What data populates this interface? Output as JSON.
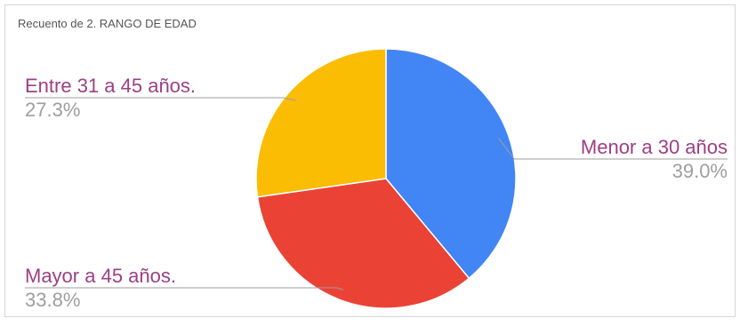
{
  "chart_data": {
    "type": "pie",
    "title": "Recuento de 2. RANGO DE EDAD",
    "slices": [
      {
        "label": "Menor a 30 años",
        "value": 39.0,
        "value_label": "39.0%",
        "color": "#4285f4"
      },
      {
        "label": "Mayor a 45 años.",
        "value": 33.8,
        "value_label": "33.8%",
        "color": "#ea4335"
      },
      {
        "label": "Entre 31 a 45 años.",
        "value": 27.3,
        "value_label": "27.3%",
        "color": "#fbbc04"
      }
    ],
    "legend": "none",
    "label_colors": {
      "name": "#9c3f84",
      "percent": "#9e9e9e"
    }
  }
}
